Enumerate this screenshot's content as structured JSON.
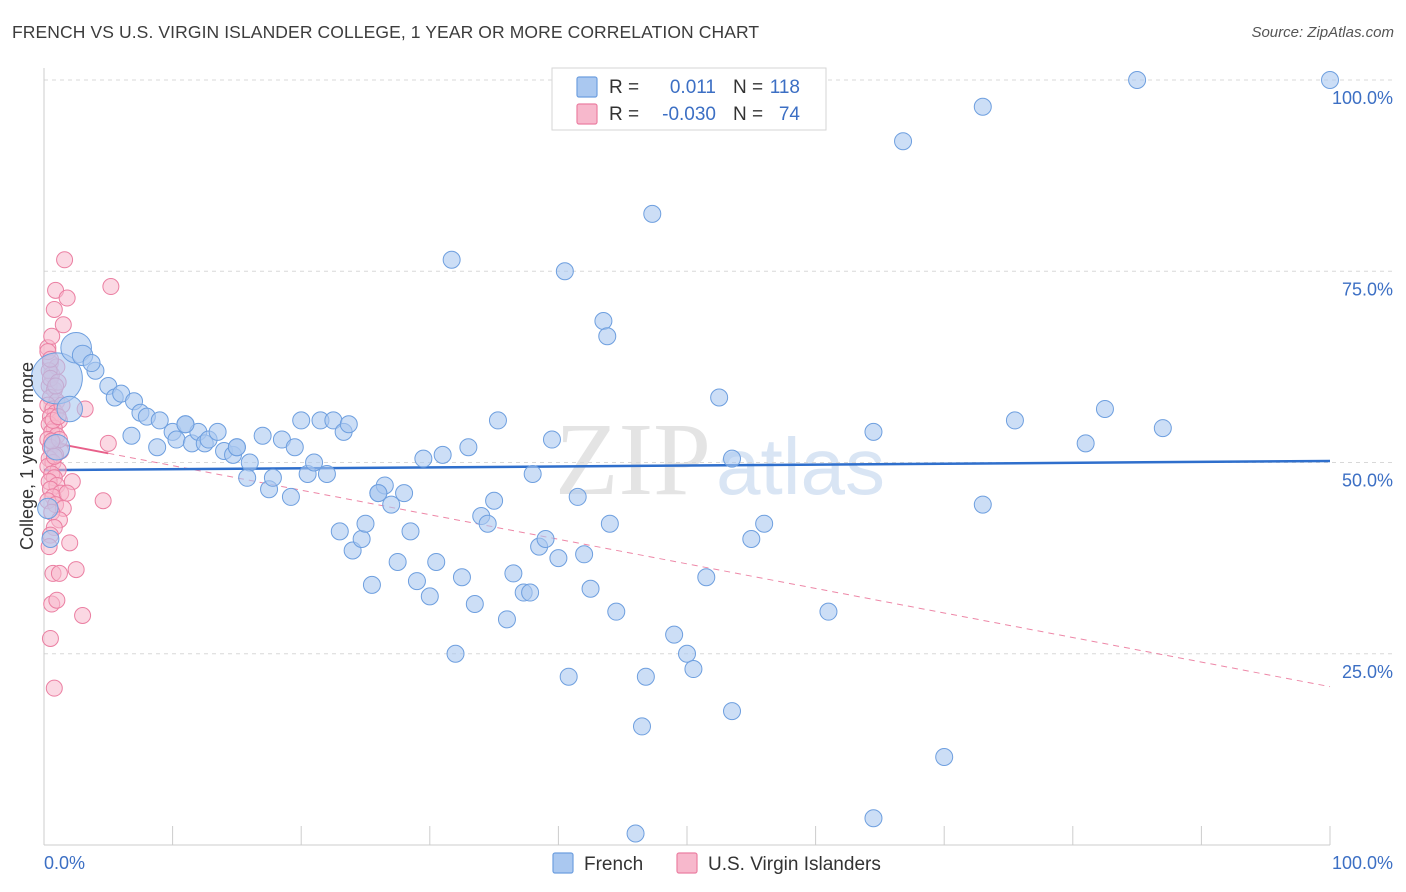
{
  "header": {
    "title": "FRENCH VS U.S. VIRGIN ISLANDER COLLEGE, 1 YEAR OR MORE CORRELATION CHART",
    "source": "Source: ZipAtlas.com"
  },
  "watermark": {
    "part1": "ZIP",
    "part2": "atlas"
  },
  "legend": {
    "rows": [
      {
        "r_label": "R =",
        "r_value": "0.011",
        "n_label": "N =",
        "n_value": "118"
      },
      {
        "r_label": "R =",
        "r_value": "-0.030",
        "n_label": "N =",
        "n_value": "74"
      }
    ]
  },
  "bottom_legend": {
    "items": [
      {
        "label": "French"
      },
      {
        "label": "U.S. Virgin Islanders"
      }
    ]
  },
  "colors": {
    "blue_fill": "#aac8f0",
    "blue_stroke": "#6e9fdf",
    "blue_line": "#2f6fcc",
    "pink_fill": "#f7b8cc",
    "pink_stroke": "#eb7fa2",
    "pink_line": "#e8608a",
    "label_blue": "#3c6fc4",
    "grid": "#d8d8d8"
  },
  "chart_data": {
    "type": "scatter",
    "title": "FRENCH VS U.S. VIRGIN ISLANDER COLLEGE, 1 YEAR OR MORE CORRELATION CHART",
    "xlabel": "",
    "ylabel": "College, 1 year or more",
    "xlim": [
      0,
      100
    ],
    "ylim": [
      0,
      100
    ],
    "x_tick_labels": [
      "0.0%",
      "100.0%"
    ],
    "y_tick_labels": [
      "25.0%",
      "50.0%",
      "75.0%",
      "100.0%"
    ],
    "y_ticks": [
      25,
      50,
      75,
      100
    ],
    "legend_position": "top-center",
    "grid": true,
    "series": [
      {
        "name": "French",
        "r": 0.011,
        "n": 118,
        "trend": {
          "x": [
            0,
            100
          ],
          "y": [
            49.0,
            50.2
          ],
          "style": "solid"
        },
        "points": [
          [
            1.0,
            61.0,
            3.0
          ],
          [
            2.5,
            65.0,
            1.8
          ],
          [
            3.0,
            64.0,
            1.2
          ],
          [
            2.0,
            57.0,
            1.5
          ],
          [
            4.0,
            62.0,
            1.0
          ],
          [
            5.0,
            60.0,
            1.0
          ],
          [
            5.5,
            58.5,
            1.0
          ],
          [
            6.0,
            59.0,
            1.0
          ],
          [
            7.0,
            58.0,
            1.0
          ],
          [
            7.5,
            56.5,
            1.0
          ],
          [
            6.8,
            53.5,
            1.0
          ],
          [
            8.0,
            56.0,
            1.0
          ],
          [
            9.0,
            55.5,
            1.0
          ],
          [
            8.8,
            52.0,
            1.0
          ],
          [
            10.0,
            54.0,
            1.0
          ],
          [
            10.3,
            53.0,
            1.0
          ],
          [
            11.0,
            55.0,
            1.0
          ],
          [
            11.5,
            52.5,
            1.0
          ],
          [
            12.0,
            54.0,
            1.0
          ],
          [
            12.5,
            52.5,
            1.0
          ],
          [
            12.8,
            53.0,
            1.0
          ],
          [
            13.5,
            54.0,
            1.0
          ],
          [
            14.0,
            51.5,
            1.0
          ],
          [
            14.7,
            51.0,
            1.0
          ],
          [
            15.0,
            52.0,
            1.0
          ],
          [
            16.0,
            50.0,
            1.0
          ],
          [
            15.8,
            48.0,
            1.0
          ],
          [
            17.0,
            53.5,
            1.0
          ],
          [
            17.5,
            46.5,
            1.0
          ],
          [
            17.8,
            48.0,
            1.0
          ],
          [
            18.5,
            53.0,
            1.0
          ],
          [
            19.2,
            45.5,
            1.0
          ],
          [
            19.5,
            52.0,
            1.0
          ],
          [
            20.0,
            55.5,
            1.0
          ],
          [
            20.5,
            48.5,
            1.0
          ],
          [
            21.0,
            50.0,
            1.0
          ],
          [
            21.5,
            55.5,
            1.0
          ],
          [
            22.0,
            48.5,
            1.0
          ],
          [
            22.5,
            55.5,
            1.0
          ],
          [
            23.0,
            41.0,
            1.0
          ],
          [
            23.3,
            54.0,
            1.0
          ],
          [
            23.7,
            55.0,
            1.0
          ],
          [
            24.0,
            38.5,
            1.0
          ],
          [
            24.7,
            40.0,
            1.0
          ],
          [
            25.0,
            42.0,
            1.0
          ],
          [
            25.5,
            34.0,
            1.0
          ],
          [
            26.0,
            46.0,
            1.0
          ],
          [
            26.5,
            47.0,
            1.0
          ],
          [
            27.0,
            44.5,
            1.0
          ],
          [
            27.5,
            37.0,
            1.0
          ],
          [
            28.0,
            46.0,
            1.0
          ],
          [
            28.5,
            41.0,
            1.0
          ],
          [
            29.0,
            34.5,
            1.0
          ],
          [
            29.5,
            50.5,
            1.0
          ],
          [
            30.0,
            32.5,
            1.0
          ],
          [
            30.5,
            37.0,
            1.0
          ],
          [
            31.0,
            51.0,
            1.0
          ],
          [
            31.7,
            76.5,
            1.0
          ],
          [
            32.0,
            25.0,
            1.0
          ],
          [
            32.5,
            35.0,
            1.0
          ],
          [
            33.0,
            52.0,
            1.0
          ],
          [
            33.5,
            31.5,
            1.0
          ],
          [
            34.0,
            43.0,
            1.0
          ],
          [
            34.5,
            42.0,
            1.0
          ],
          [
            35.0,
            45.0,
            1.0
          ],
          [
            35.3,
            55.5,
            1.0
          ],
          [
            36.0,
            29.5,
            1.0
          ],
          [
            36.5,
            35.5,
            1.0
          ],
          [
            37.3,
            33.0,
            1.0
          ],
          [
            37.8,
            33.0,
            1.0
          ],
          [
            38.0,
            48.5,
            1.0
          ],
          [
            38.5,
            39.0,
            1.0
          ],
          [
            39.0,
            40.0,
            1.0
          ],
          [
            39.5,
            53.0,
            1.0
          ],
          [
            40.0,
            37.5,
            1.0
          ],
          [
            40.5,
            75.0,
            1.0
          ],
          [
            40.8,
            22.0,
            1.0
          ],
          [
            41.5,
            45.5,
            1.0
          ],
          [
            42.0,
            38.0,
            1.0
          ],
          [
            42.5,
            33.5,
            1.0
          ],
          [
            43.5,
            68.5,
            1.0
          ],
          [
            43.8,
            66.5,
            1.0
          ],
          [
            44.0,
            42.0,
            1.0
          ],
          [
            44.5,
            30.5,
            1.0
          ],
          [
            46.0,
            1.5,
            1.0
          ],
          [
            46.5,
            15.5,
            1.0
          ],
          [
            46.8,
            22.0,
            1.0
          ],
          [
            47.3,
            82.5,
            1.0
          ],
          [
            49.0,
            27.5,
            1.0
          ],
          [
            50.0,
            25.0,
            1.0
          ],
          [
            50.5,
            23.0,
            1.0
          ],
          [
            51.5,
            35.0,
            1.0
          ],
          [
            52.5,
            58.5,
            1.0
          ],
          [
            53.5,
            50.5,
            1.0
          ],
          [
            53.5,
            17.5,
            1.0
          ],
          [
            55.0,
            40.0,
            1.0
          ],
          [
            56.0,
            42.0,
            1.0
          ],
          [
            60.0,
            100.0,
            1.0
          ],
          [
            61.0,
            30.5,
            1.0
          ],
          [
            64.5,
            54.0,
            1.0
          ],
          [
            64.5,
            3.5,
            1.0
          ],
          [
            66.8,
            92.0,
            1.0
          ],
          [
            70.0,
            11.5,
            1.0
          ],
          [
            73.0,
            96.5,
            1.0
          ],
          [
            73.0,
            44.5,
            1.0
          ],
          [
            75.5,
            55.5,
            1.0
          ],
          [
            81.0,
            52.5,
            1.0
          ],
          [
            82.5,
            57.0,
            1.0
          ],
          [
            85.0,
            100.0,
            1.0
          ],
          [
            87.0,
            54.5,
            1.0
          ],
          [
            100.0,
            100.0,
            1.0
          ],
          [
            1.0,
            52.0,
            1.5
          ],
          [
            0.3,
            44.0,
            1.2
          ],
          [
            0.5,
            40.0,
            1.0
          ],
          [
            3.7,
            63.0,
            1.0
          ],
          [
            11.0,
            55.0,
            1.0
          ],
          [
            15.0,
            52.0,
            1.0
          ],
          [
            26.0,
            46.0,
            1.0
          ]
        ]
      },
      {
        "name": "U.S. Virgin Islanders",
        "r": -0.03,
        "n": 74,
        "trend": {
          "x": [
            0,
            5
          ],
          "y": [
            52.8,
            51.2
          ],
          "style": "solid",
          "extension": {
            "x": [
              5,
              100
            ],
            "y": [
              51.2,
              20.7
            ],
            "style": "dashed"
          }
        },
        "points": [
          [
            0.3,
            65.0
          ],
          [
            0.5,
            63.0
          ],
          [
            0.6,
            61.5
          ],
          [
            0.4,
            60.0
          ],
          [
            0.8,
            59.5
          ],
          [
            0.5,
            58.5
          ],
          [
            1.0,
            58.0
          ],
          [
            0.3,
            57.5
          ],
          [
            0.7,
            57.0
          ],
          [
            0.9,
            56.5
          ],
          [
            0.5,
            56.0
          ],
          [
            1.2,
            55.5
          ],
          [
            0.4,
            55.0
          ],
          [
            0.8,
            54.5
          ],
          [
            0.6,
            54.0
          ],
          [
            1.0,
            53.5
          ],
          [
            0.3,
            53.0
          ],
          [
            0.7,
            52.5
          ],
          [
            0.5,
            52.0
          ],
          [
            1.3,
            51.5
          ],
          [
            0.9,
            51.0
          ],
          [
            0.4,
            50.5
          ],
          [
            0.7,
            50.0
          ],
          [
            0.3,
            49.5
          ],
          [
            1.1,
            49.0
          ],
          [
            0.6,
            48.5
          ],
          [
            0.8,
            48.0
          ],
          [
            0.4,
            47.5
          ],
          [
            1.0,
            47.0
          ],
          [
            0.5,
            46.5
          ],
          [
            1.3,
            46.0
          ],
          [
            0.7,
            45.5
          ],
          [
            0.3,
            45.0
          ],
          [
            0.9,
            44.5
          ],
          [
            1.5,
            44.0
          ],
          [
            0.6,
            43.5
          ],
          [
            1.2,
            42.5
          ],
          [
            0.8,
            41.5
          ],
          [
            0.5,
            40.5
          ],
          [
            0.4,
            39.0
          ],
          [
            2.0,
            39.5
          ],
          [
            0.7,
            35.5
          ],
          [
            1.2,
            35.5
          ],
          [
            2.5,
            36.0
          ],
          [
            0.6,
            31.5
          ],
          [
            1.0,
            32.0
          ],
          [
            3.0,
            30.0
          ],
          [
            0.5,
            27.0
          ],
          [
            0.8,
            20.5
          ],
          [
            1.6,
            76.5
          ],
          [
            0.9,
            72.5
          ],
          [
            1.8,
            71.5
          ],
          [
            0.8,
            70.0
          ],
          [
            1.5,
            68.0
          ],
          [
            0.6,
            66.5
          ],
          [
            0.3,
            64.5
          ],
          [
            5.2,
            73.0
          ],
          [
            1.0,
            62.5
          ],
          [
            0.4,
            62.0
          ],
          [
            0.5,
            61.0
          ],
          [
            1.1,
            60.5
          ],
          [
            1.4,
            57.5
          ],
          [
            3.2,
            57.0
          ],
          [
            0.7,
            55.5
          ],
          [
            1.2,
            53.0
          ],
          [
            5.0,
            52.5
          ],
          [
            2.2,
            47.5
          ],
          [
            4.6,
            45.0
          ],
          [
            1.8,
            46.0
          ],
          [
            0.5,
            63.5
          ],
          [
            0.9,
            60.0
          ],
          [
            1.1,
            56.0
          ],
          [
            0.6,
            52.8
          ],
          [
            0.8,
            50.8
          ]
        ]
      }
    ]
  }
}
